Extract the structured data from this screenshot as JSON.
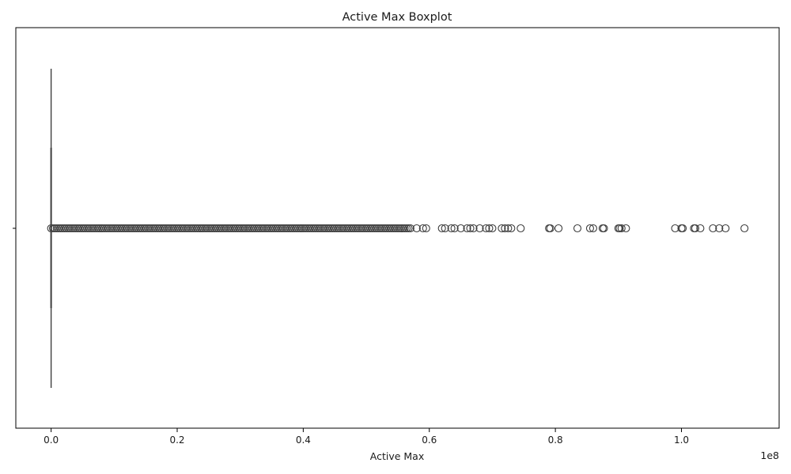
{
  "chart_data": {
    "type": "boxplot",
    "title": "Active Max Boxplot",
    "xlabel": "Active Max",
    "ylabel": "",
    "x_offset_label": "1e8",
    "xlim": [
      -0.056,
      1.155
    ],
    "xticks": [
      0.0,
      0.2,
      0.4,
      0.6,
      0.8,
      1.0
    ],
    "xtick_labels": [
      "0.0",
      "0.2",
      "0.4",
      "0.6",
      "0.8",
      "1.0"
    ],
    "y_categories": [
      ""
    ],
    "grid": false,
    "box": {
      "q1": 0.0,
      "median": 0.0,
      "q3": 0.0,
      "whisker_low": 0.0,
      "whisker_high": 0.0
    },
    "outliers_dense_range": [
      0.0,
      0.57
    ],
    "outliers": [
      0.58,
      0.59,
      0.595,
      0.62,
      0.625,
      0.635,
      0.64,
      0.65,
      0.66,
      0.665,
      0.67,
      0.68,
      0.69,
      0.695,
      0.7,
      0.715,
      0.72,
      0.725,
      0.73,
      0.745,
      0.79,
      0.792,
      0.805,
      0.835,
      0.855,
      0.86,
      0.875,
      0.877,
      0.9,
      0.902,
      0.905,
      0.912,
      0.99,
      1.0,
      1.002,
      1.02,
      1.022,
      1.03,
      1.05,
      1.06,
      1.07,
      1.1
    ],
    "colors": {
      "box_edge": "#3f3f3f",
      "outlier_edge": "#3f3f3f",
      "axis": "#000000"
    }
  }
}
